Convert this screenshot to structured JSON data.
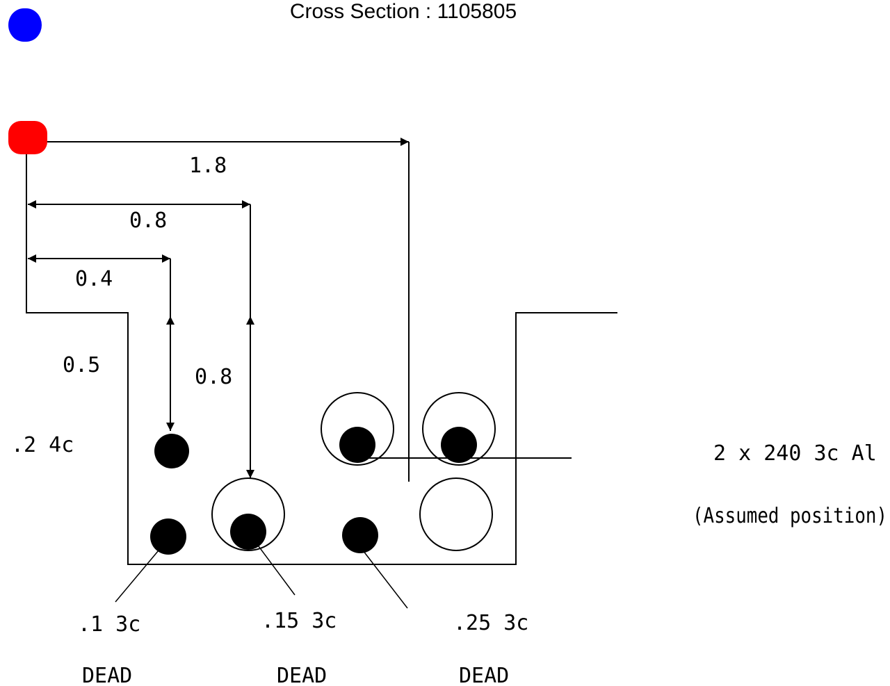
{
  "title": "Cross Section : 1105805",
  "colors": {
    "start_marker": "#0000ff",
    "origin_marker": "#ff0000",
    "line": "#000000",
    "cable_fill": "#000000"
  },
  "dimensions": {
    "d_1_8": "1.8",
    "d_0_8_h": "0.8",
    "d_0_4": "0.4",
    "d_0_5": "0.5",
    "d_0_8_v": "0.8"
  },
  "cables": {
    "c_2_4c": ".2 4c",
    "c_1_3c": ".1 3c",
    "c_15_3c": ".15 3c",
    "c_25_3c": ".25 3c",
    "dead_1": "DEAD",
    "dead_2": "DEAD",
    "dead_3": "DEAD",
    "al_cable": "2 x 240 3c Al",
    "assumed": "(Assumed position)"
  }
}
